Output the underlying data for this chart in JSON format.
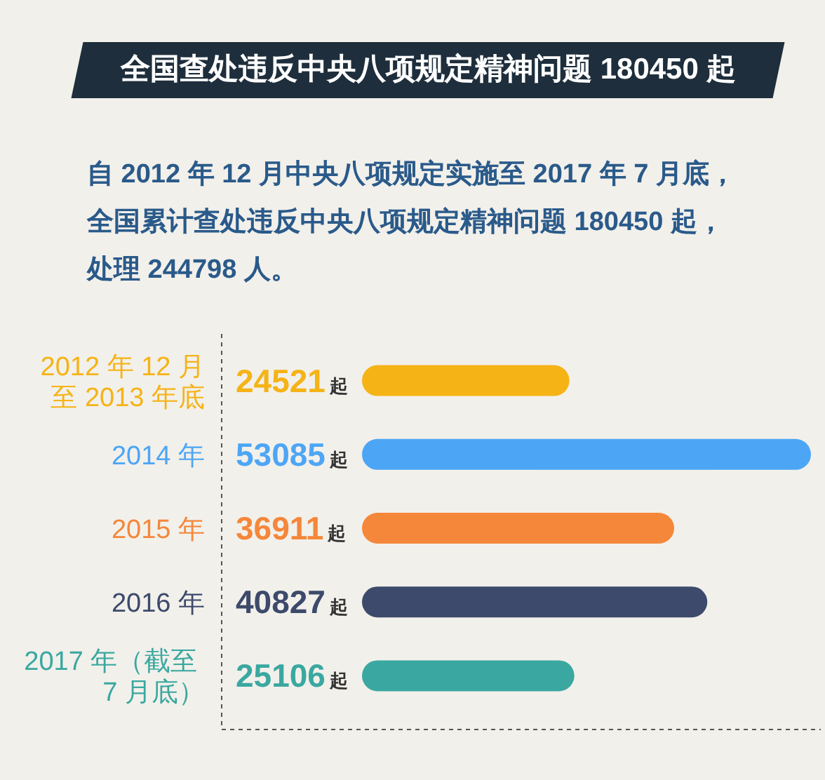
{
  "chart_data": {
    "type": "bar",
    "orientation": "horizontal",
    "title": "全国查处违反中央八项规定精神问题 180450 起",
    "subtitle": "自 2012 年 12 月中央八项规定实施至 2017 年 7 月底，全国累计查处违反中央八项规定精神问题 180450 起，处理 244798 人。",
    "categories": [
      "2012 年 12 月至 2013 年底",
      "2014 年",
      "2015 年",
      "2016 年",
      "2017 年（截至 7 月底）"
    ],
    "values": [
      24521,
      53085,
      36911,
      40827,
      25106
    ],
    "value_labels": [
      "24521起",
      "53085起",
      "36911起",
      "40827起",
      "25106起"
    ],
    "colors": [
      "#f5b316",
      "#4da6f5",
      "#f5873a",
      "#3d4a6b",
      "#3aa8a0"
    ]
  }
}
